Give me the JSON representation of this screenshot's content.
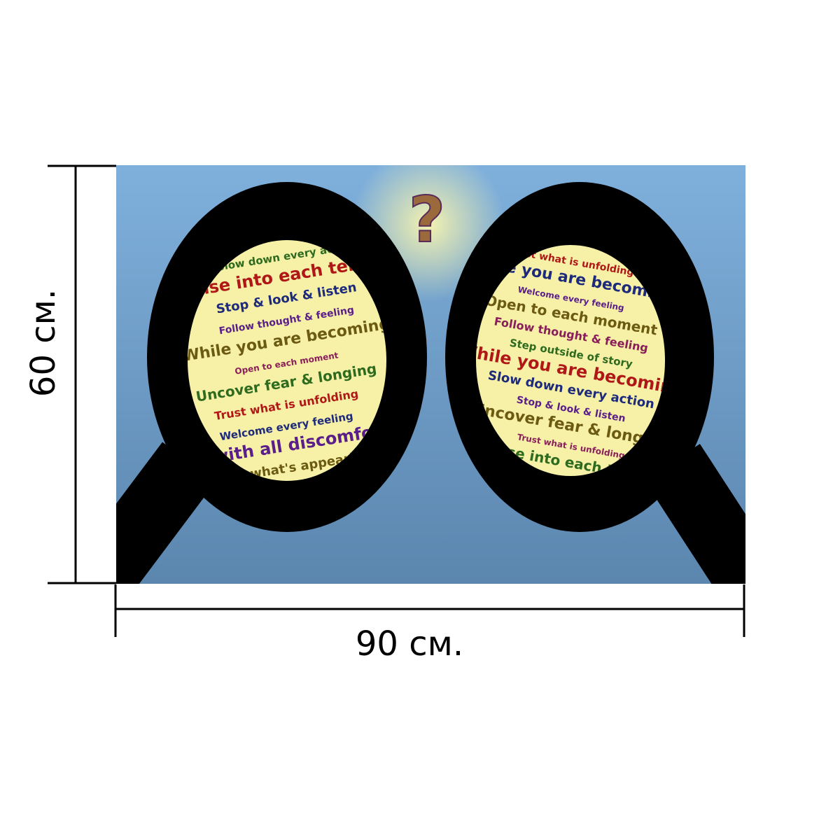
{
  "dimensions": {
    "height": "60 см.",
    "width": "90 см."
  },
  "question_mark": "?",
  "lenses": [
    {
      "phrases": [
        "Slow down every action",
        "Sense into each tension",
        "Stop & look & listen",
        "Follow thought & feeling",
        "While you are becoming",
        "Open to each moment",
        "Uncover fear & longing",
        "Trust what is unfolding",
        "Welcome every feeling",
        "Be with all discomfort",
        "Notice what's appearing"
      ]
    },
    {
      "phrases": [
        "Trust what is unfolding",
        "While you are becoming",
        "Welcome every feeling",
        "Open to each moment",
        "Follow thought & feeling",
        "Step outside of story",
        "While you are becoming",
        "Slow down every action",
        "Stop & look & listen",
        "Uncover fear & longing",
        "Trust what is unfolding",
        "Sense into each tension"
      ]
    }
  ]
}
